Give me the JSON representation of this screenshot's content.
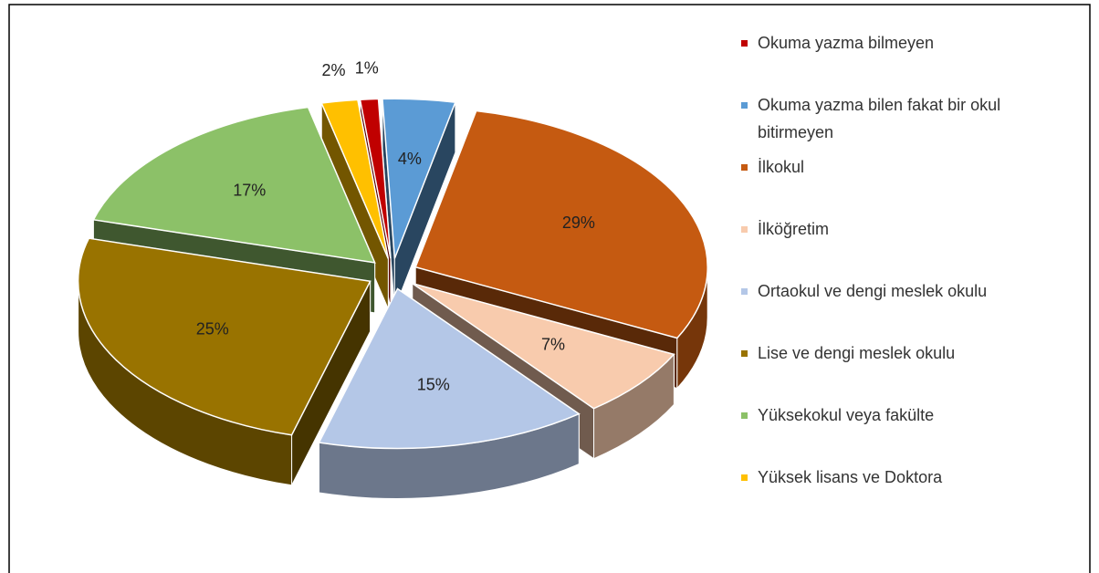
{
  "chart_data": {
    "type": "pie",
    "categories": [
      "Okuma yazma bilmeyen",
      "Okuma yazma bilen fakat bir okul bitirmeyen",
      "İlkokul",
      "İlköğretim",
      "Ortaokul ve dengi meslek okulu",
      "Lise ve dengi meslek okulu",
      "Yüksekokul veya fakülte",
      "Yüksek lisans ve Doktora"
    ],
    "values": [
      1,
      4,
      29,
      7,
      15,
      25,
      17,
      2
    ],
    "value_labels": [
      "1%",
      "4%",
      "29%",
      "7%",
      "15%",
      "25%",
      "17%",
      "2%"
    ],
    "colors": [
      "#c00000",
      "#5b9bd5",
      "#c55a11",
      "#f8cbad",
      "#b4c7e7",
      "#997300",
      "#8cc168",
      "#ffc000"
    ],
    "legend": "right"
  }
}
